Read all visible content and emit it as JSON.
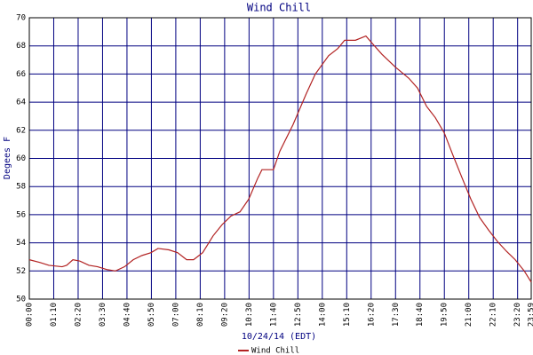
{
  "chart_data": {
    "type": "line",
    "title": "Wind Chill",
    "x_label": "10/24/14 (EDT)",
    "y_label": "Degees F",
    "xlim": [
      0,
      1439
    ],
    "ylim": [
      50,
      70
    ],
    "xticks": [
      {
        "value": 0,
        "label": "00:00"
      },
      {
        "value": 70,
        "label": "01:10"
      },
      {
        "value": 140,
        "label": "02:20"
      },
      {
        "value": 210,
        "label": "03:30"
      },
      {
        "value": 280,
        "label": "04:40"
      },
      {
        "value": 350,
        "label": "05:50"
      },
      {
        "value": 420,
        "label": "07:00"
      },
      {
        "value": 490,
        "label": "08:10"
      },
      {
        "value": 560,
        "label": "09:20"
      },
      {
        "value": 630,
        "label": "10:30"
      },
      {
        "value": 700,
        "label": "11:40"
      },
      {
        "value": 770,
        "label": "12:50"
      },
      {
        "value": 840,
        "label": "14:00"
      },
      {
        "value": 910,
        "label": "15:10"
      },
      {
        "value": 980,
        "label": "16:20"
      },
      {
        "value": 1050,
        "label": "17:30"
      },
      {
        "value": 1120,
        "label": "18:40"
      },
      {
        "value": 1190,
        "label": "19:50"
      },
      {
        "value": 1260,
        "label": "21:00"
      },
      {
        "value": 1330,
        "label": "22:10"
      },
      {
        "value": 1400,
        "label": "23:20"
      },
      {
        "value": 1439,
        "label": "23:59"
      }
    ],
    "yticks": [
      50,
      52,
      54,
      56,
      58,
      60,
      62,
      64,
      66,
      68,
      70
    ],
    "grid": true,
    "grid_color": "#000080",
    "series": [
      {
        "name": "Wind Chill",
        "color": "#b22222",
        "x": [
          0,
          31,
          56,
          94,
          107,
          125,
          145,
          171,
          196,
          222,
          247,
          273,
          298,
          323,
          349,
          369,
          400,
          425,
          451,
          471,
          497,
          527,
          553,
          578,
          604,
          629,
          655,
          667,
          700,
          718,
          756,
          794,
          820,
          858,
          884,
          904,
          935,
          965,
          986,
          1011,
          1049,
          1088,
          1113,
          1139,
          1164,
          1190,
          1215,
          1241,
          1266,
          1291,
          1317,
          1342,
          1368,
          1393,
          1419,
          1439
        ],
        "values": [
          52.8,
          52.6,
          52.4,
          52.3,
          52.4,
          52.8,
          52.7,
          52.4,
          52.3,
          52.1,
          52.0,
          52.3,
          52.8,
          53.1,
          53.3,
          53.6,
          53.5,
          53.3,
          52.8,
          52.8,
          53.3,
          54.5,
          55.3,
          55.9,
          56.2,
          57.1,
          58.6,
          59.2,
          59.2,
          60.5,
          62.4,
          64.6,
          66.0,
          67.3,
          67.8,
          68.4,
          68.4,
          68.7,
          68.1,
          67.4,
          66.5,
          65.7,
          65.0,
          63.7,
          62.9,
          61.8,
          60.2,
          58.6,
          57.1,
          55.8,
          54.9,
          54.1,
          53.4,
          52.8,
          52.0,
          51.2
        ]
      }
    ]
  }
}
